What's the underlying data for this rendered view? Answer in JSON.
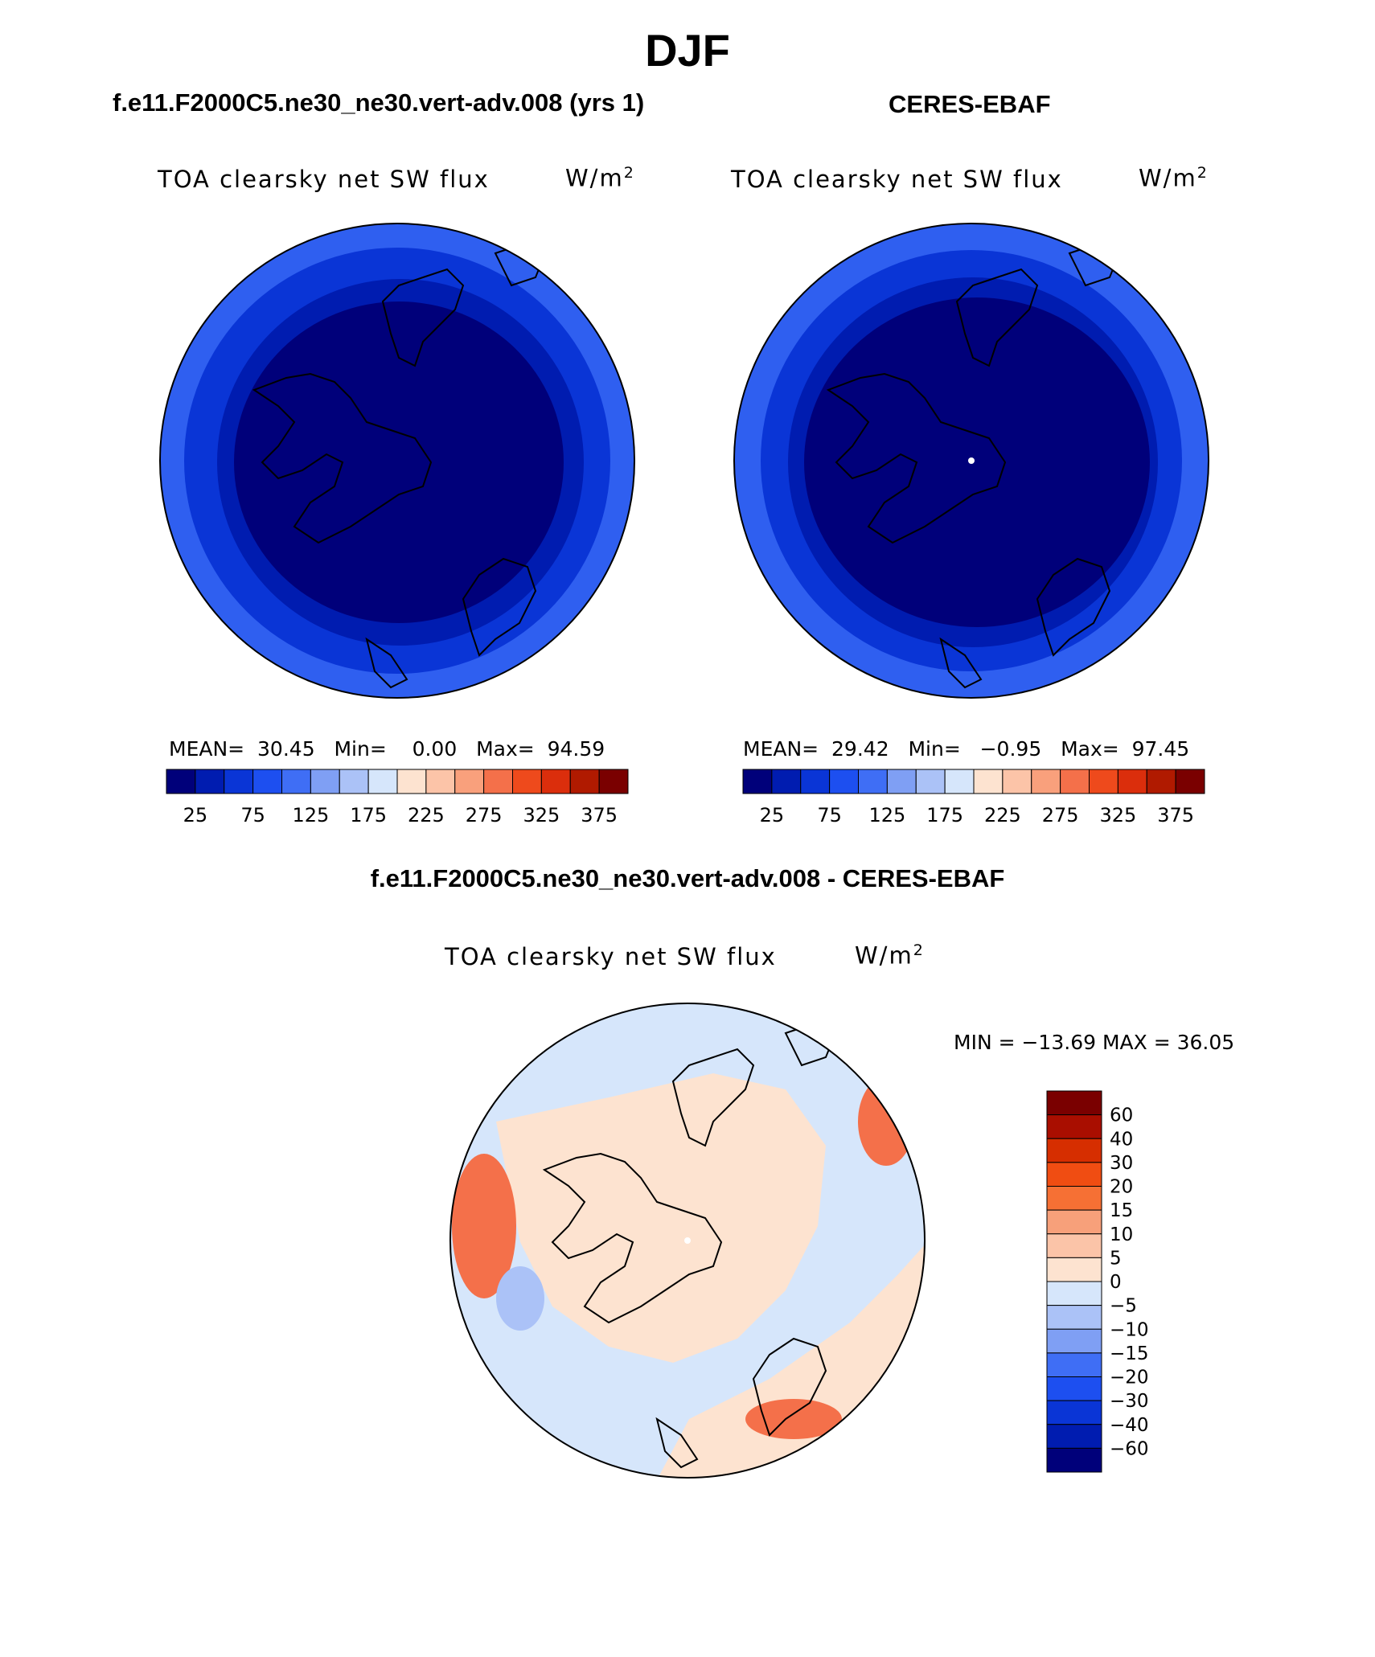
{
  "main_title": "DJF",
  "panels": [
    {
      "subtitle": "f.e11.F2000C5.ne30_ne30.vert-adv.008 (yrs 1)",
      "var_title": "TOA clearsky net SW flux",
      "unit_base": "W/m",
      "unit_exp": "2",
      "stats": {
        "mean_label": "MEAN=",
        "mean": "30.45",
        "min_label": "Min=",
        "min": "0.00",
        "max_label": "Max=",
        "max": "94.59"
      }
    },
    {
      "subtitle": "CERES-EBAF",
      "var_title": "TOA clearsky net SW flux",
      "unit_base": "W/m",
      "unit_exp": "2",
      "stats": {
        "mean_label": "MEAN=",
        "mean": "29.42",
        "min_label": "Min=",
        "min": "−0.95",
        "max_label": "Max=",
        "max": "97.45"
      }
    }
  ],
  "diff_panel": {
    "subtitle": "f.e11.F2000C5.ne30_ne30.vert-adv.008 - CERES-EBAF",
    "var_title": "TOA clearsky net SW flux",
    "unit_base": "W/m",
    "unit_exp": "2",
    "min_max": "MIN = −13.69 MAX =   36.05"
  },
  "colorbar_abs": {
    "colors": [
      "#00007a",
      "#001cb0",
      "#0a35d6",
      "#1d4ff0",
      "#3f6ef5",
      "#7f9ff4",
      "#abc2f7",
      "#d6e6fb",
      "#fde3d0",
      "#fcc4a8",
      "#f9a07c",
      "#f4704a",
      "#ee4a1c",
      "#db2e0c",
      "#b01a00",
      "#7a0000"
    ],
    "tick_labels": [
      "25",
      "75",
      "125",
      "175",
      "225",
      "275",
      "325",
      "375"
    ]
  },
  "colorbar_diff": {
    "colors": [
      "#7a0000",
      "#a90e00",
      "#d62e00",
      "#f04d12",
      "#f67034",
      "#f7a07a",
      "#fbc4a8",
      "#fde3d0",
      "#d6e6fb",
      "#abc2f7",
      "#7f9ff4",
      "#3f6ef5",
      "#1d4ff0",
      "#0a35d6",
      "#001cb0",
      "#00007a"
    ],
    "tick_labels": [
      "60",
      "40",
      "30",
      "20",
      "15",
      "10",
      "5",
      "0",
      "−5",
      "−10",
      "−15",
      "−20",
      "−30",
      "−40",
      "−60"
    ]
  },
  "map_colors": {
    "outer_ring": "#2f5ff0",
    "mid_ring": "#0a35d6",
    "inner_ring": "#001cb0",
    "core": "#00007a",
    "diff_neutral_warm": "#fde3d0",
    "diff_neutral_cool": "#d6e6fb",
    "diff_warm": "#f4704a",
    "diff_cool": "#abc2f7"
  }
}
